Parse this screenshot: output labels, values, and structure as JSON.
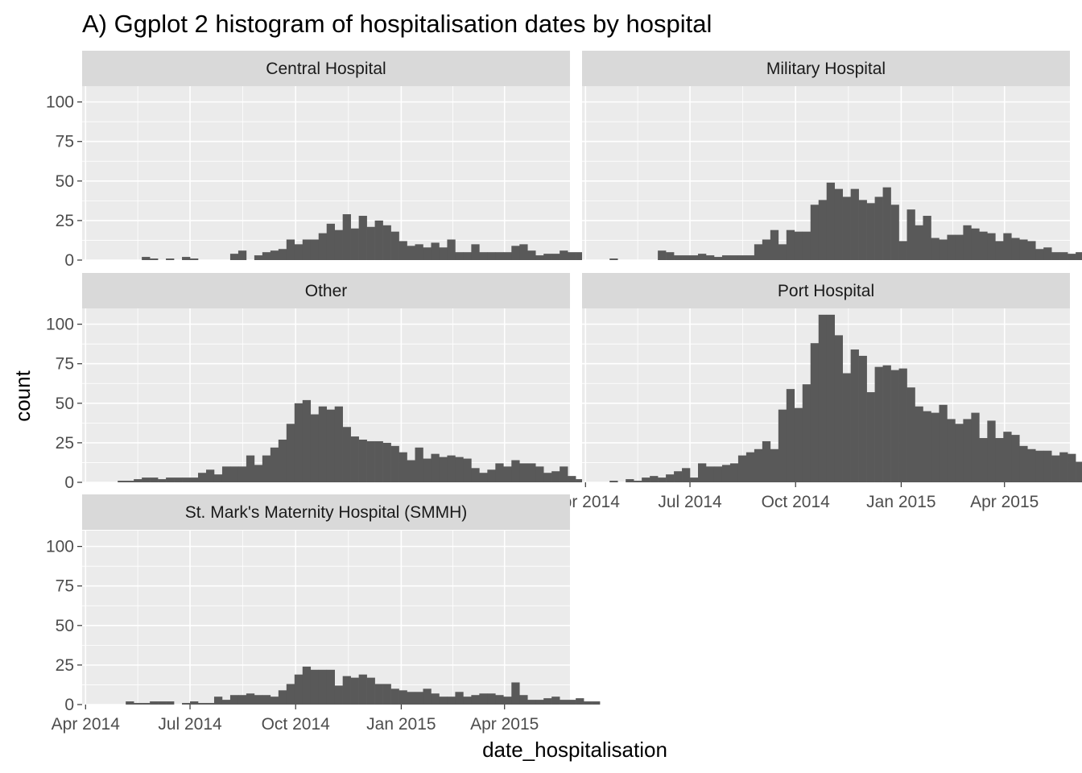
{
  "chart_data": {
    "type": "bar",
    "title": "A) Ggplot 2 histogram of hospitalisation dates by hospital",
    "xlabel": "date_hospitalisation",
    "ylabel": "count",
    "ylim": [
      0,
      110
    ],
    "y_ticks": [
      0,
      25,
      50,
      75,
      100
    ],
    "x_domain": [
      "2014-03-29",
      "2015-05-28"
    ],
    "x_ticks": [
      {
        "label": "Apr 2014",
        "date": "2014-04-01"
      },
      {
        "label": "Jul 2014",
        "date": "2014-07-01"
      },
      {
        "label": "Oct 2014",
        "date": "2014-10-01"
      },
      {
        "label": "Jan 2015",
        "date": "2015-01-01"
      },
      {
        "label": "Apr 2015",
        "date": "2015-04-01"
      }
    ],
    "bins": {
      "first_bin_start": "2014-04-01",
      "bin_width_days": 7
    },
    "grid": true,
    "legend": "none",
    "facets": [
      {
        "name": "Central Hospital",
        "first_bin": 7,
        "values": [
          2,
          1,
          0,
          1,
          0,
          2,
          1,
          0,
          0,
          0,
          0,
          4,
          6,
          0,
          3,
          5,
          6,
          7,
          13,
          10,
          13,
          13,
          17,
          23,
          19,
          29,
          20,
          28,
          21,
          25,
          22,
          18,
          12,
          9,
          10,
          8,
          11,
          8,
          13,
          5,
          5,
          10,
          5,
          5,
          5,
          5,
          9,
          10,
          6,
          3,
          4,
          4,
          6,
          5,
          5,
          4,
          5,
          4,
          6,
          3
        ]
      },
      {
        "name": "Military Hospital",
        "first_bin": 3,
        "values": [
          1,
          0,
          0,
          0,
          0,
          0,
          6,
          5,
          3,
          3,
          3,
          4,
          3,
          2,
          3,
          3,
          3,
          3,
          10,
          13,
          19,
          10,
          19,
          18,
          18,
          35,
          38,
          49,
          45,
          40,
          45,
          38,
          36,
          40,
          46,
          35,
          12,
          32,
          22,
          28,
          14,
          13,
          16,
          16,
          22,
          20,
          18,
          17,
          12,
          17,
          14,
          13,
          12,
          7,
          8,
          5,
          5,
          4,
          5,
          4,
          6,
          3
        ]
      },
      {
        "name": "Other",
        "first_bin": 4,
        "values": [
          1,
          1,
          2,
          3,
          3,
          2,
          3,
          3,
          3,
          3,
          6,
          8,
          5,
          10,
          10,
          10,
          17,
          11,
          17,
          22,
          27,
          37,
          50,
          52,
          43,
          48,
          46,
          48,
          35,
          29,
          27,
          26,
          26,
          25,
          23,
          19,
          14,
          22,
          15,
          18,
          16,
          17,
          16,
          15,
          9,
          6,
          8,
          12,
          10,
          14,
          12,
          12,
          10,
          6,
          7,
          10,
          4,
          2
        ]
      },
      {
        "name": "Port Hospital",
        "first_bin": 2,
        "values": [
          0,
          1,
          0,
          2,
          1,
          3,
          4,
          3,
          5,
          7,
          9,
          3,
          12,
          10,
          10,
          11,
          12,
          17,
          19,
          21,
          26,
          21,
          46,
          59,
          47,
          62,
          88,
          106,
          106,
          93,
          69,
          84,
          80,
          57,
          73,
          74,
          71,
          72,
          60,
          48,
          45,
          44,
          49,
          40,
          37,
          40,
          44,
          28,
          39,
          28,
          32,
          30,
          23,
          21,
          20,
          20,
          17,
          19,
          18,
          13,
          10,
          11,
          14,
          9
        ]
      },
      {
        "name": "St. Mark's Maternity Hospital (SMMH)",
        "first_bin": 5,
        "values": [
          2,
          1,
          1,
          2,
          2,
          2,
          0,
          1,
          2,
          1,
          1,
          5,
          3,
          6,
          6,
          7,
          6,
          6,
          5,
          9,
          13,
          19,
          24,
          22,
          22,
          22,
          12,
          18,
          17,
          19,
          17,
          13,
          13,
          10,
          9,
          8,
          8,
          10,
          7,
          5,
          5,
          8,
          5,
          6,
          7,
          7,
          6,
          5,
          14,
          6,
          3,
          3,
          4,
          5,
          3,
          3,
          4,
          2,
          2
        ]
      }
    ]
  }
}
